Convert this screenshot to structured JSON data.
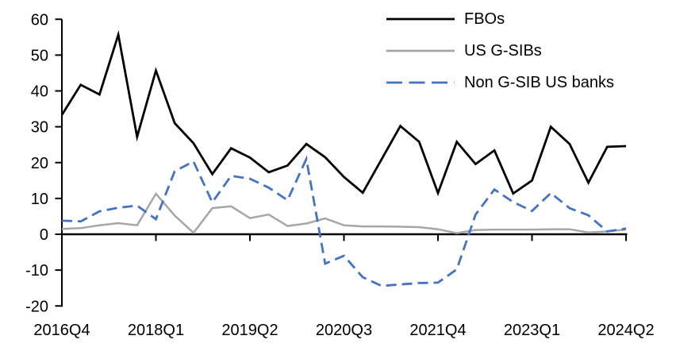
{
  "chart_data": {
    "type": "line",
    "categories": [
      "2016Q4",
      "2017Q1",
      "2017Q2",
      "2017Q3",
      "2017Q4",
      "2018Q1",
      "2018Q2",
      "2018Q3",
      "2018Q4",
      "2019Q1",
      "2019Q2",
      "2019Q3",
      "2019Q4",
      "2020Q1",
      "2020Q2",
      "2020Q3",
      "2020Q4",
      "2021Q1",
      "2021Q2",
      "2021Q3",
      "2021Q4",
      "2022Q1",
      "2022Q2",
      "2022Q3",
      "2022Q4",
      "2023Q1",
      "2023Q2",
      "2023Q3",
      "2023Q4",
      "2024Q1",
      "2024Q2"
    ],
    "x_tick_labels": [
      "2016Q4",
      "2018Q1",
      "2019Q2",
      "2020Q3",
      "2021Q4",
      "2023Q1",
      "2024Q2"
    ],
    "x_tick_indices": [
      0,
      5,
      10,
      15,
      20,
      25,
      30
    ],
    "y_ticks": [
      60,
      50,
      40,
      30,
      20,
      10,
      0,
      -10,
      -20
    ],
    "ylim": [
      -20,
      60
    ],
    "grid": false,
    "legend_position": "top-right",
    "axis_color": "#000000",
    "background_color": "#ffffff",
    "series": [
      {
        "name": "FBOs",
        "color": "#000000",
        "style": "solid",
        "values": [
          33.3,
          41.7,
          39.0,
          55.7,
          27.2,
          45.7,
          31.0,
          25.4,
          16.8,
          24.0,
          21.4,
          17.3,
          19.2,
          25.2,
          21.5,
          16.0,
          11.6,
          20.9,
          30.2,
          25.8,
          11.5,
          25.8,
          19.6,
          23.4,
          11.4,
          15.0,
          30.0,
          25.2,
          14.4,
          24.4,
          24.6
        ]
      },
      {
        "name": "US G-SIBs",
        "color": "#a6a6a6",
        "style": "solid",
        "values": [
          1.5,
          1.7,
          2.5,
          3.1,
          2.5,
          11.3,
          5.2,
          0.4,
          7.3,
          7.8,
          4.5,
          5.5,
          2.3,
          3.0,
          4.4,
          2.5,
          2.2,
          2.2,
          2.1,
          2.0,
          1.4,
          0.3,
          1.2,
          1.3,
          1.3,
          1.3,
          1.4,
          1.4,
          0.5,
          0.8,
          1.3
        ]
      },
      {
        "name": "Non G-SIB US banks",
        "color": "#4472c4",
        "style": "dashed",
        "values": [
          3.8,
          3.6,
          6.4,
          7.4,
          8.0,
          4.2,
          17.6,
          20.3,
          8.9,
          16.3,
          15.5,
          13.0,
          9.5,
          21.0,
          -8.2,
          -6.0,
          -12.0,
          -14.4,
          -14.0,
          -13.6,
          -13.5,
          -9.8,
          5.5,
          12.5,
          9.0,
          6.5,
          11.5,
          7.3,
          5.3,
          0.8,
          1.6
        ]
      }
    ]
  }
}
